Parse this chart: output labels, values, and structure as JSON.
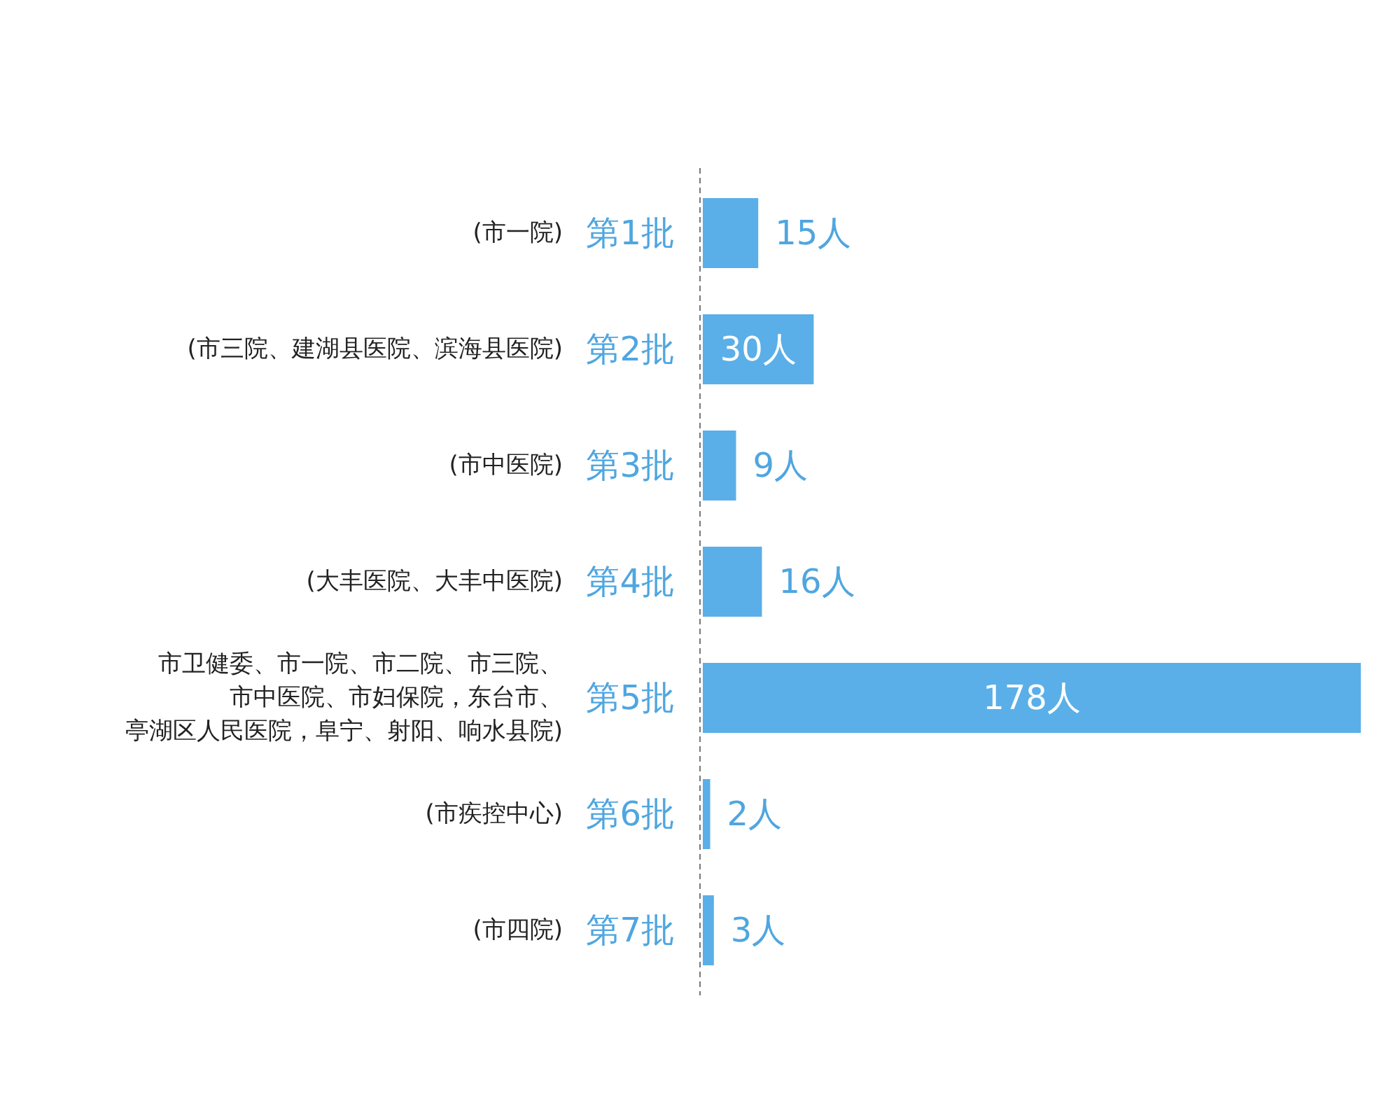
{
  "chart_data": {
    "type": "bar",
    "orientation": "horizontal",
    "color": "#5aafe8",
    "categories": [
      "第1批",
      "第2批",
      "第3批",
      "第4批",
      "第5批",
      "第6批",
      "第7批"
    ],
    "values": [
      15,
      30,
      9,
      16,
      178,
      2,
      3
    ],
    "value_labels": [
      "15人",
      "30人",
      "9人",
      "16人",
      "178人",
      "2人",
      "3人"
    ],
    "annotations": [
      "(市一院)",
      "(市三院、建湖县医院、滨海县医院)",
      "(市中医院)",
      "(大丰医院、大丰中医院)",
      "市卫健委、市一院、市二院、市三院、市中医院、市妇保院，东台市、亭湖区人民医院，阜宁、射阳、响水县院)",
      "(市疾控中心)",
      "(市四院)"
    ]
  }
}
